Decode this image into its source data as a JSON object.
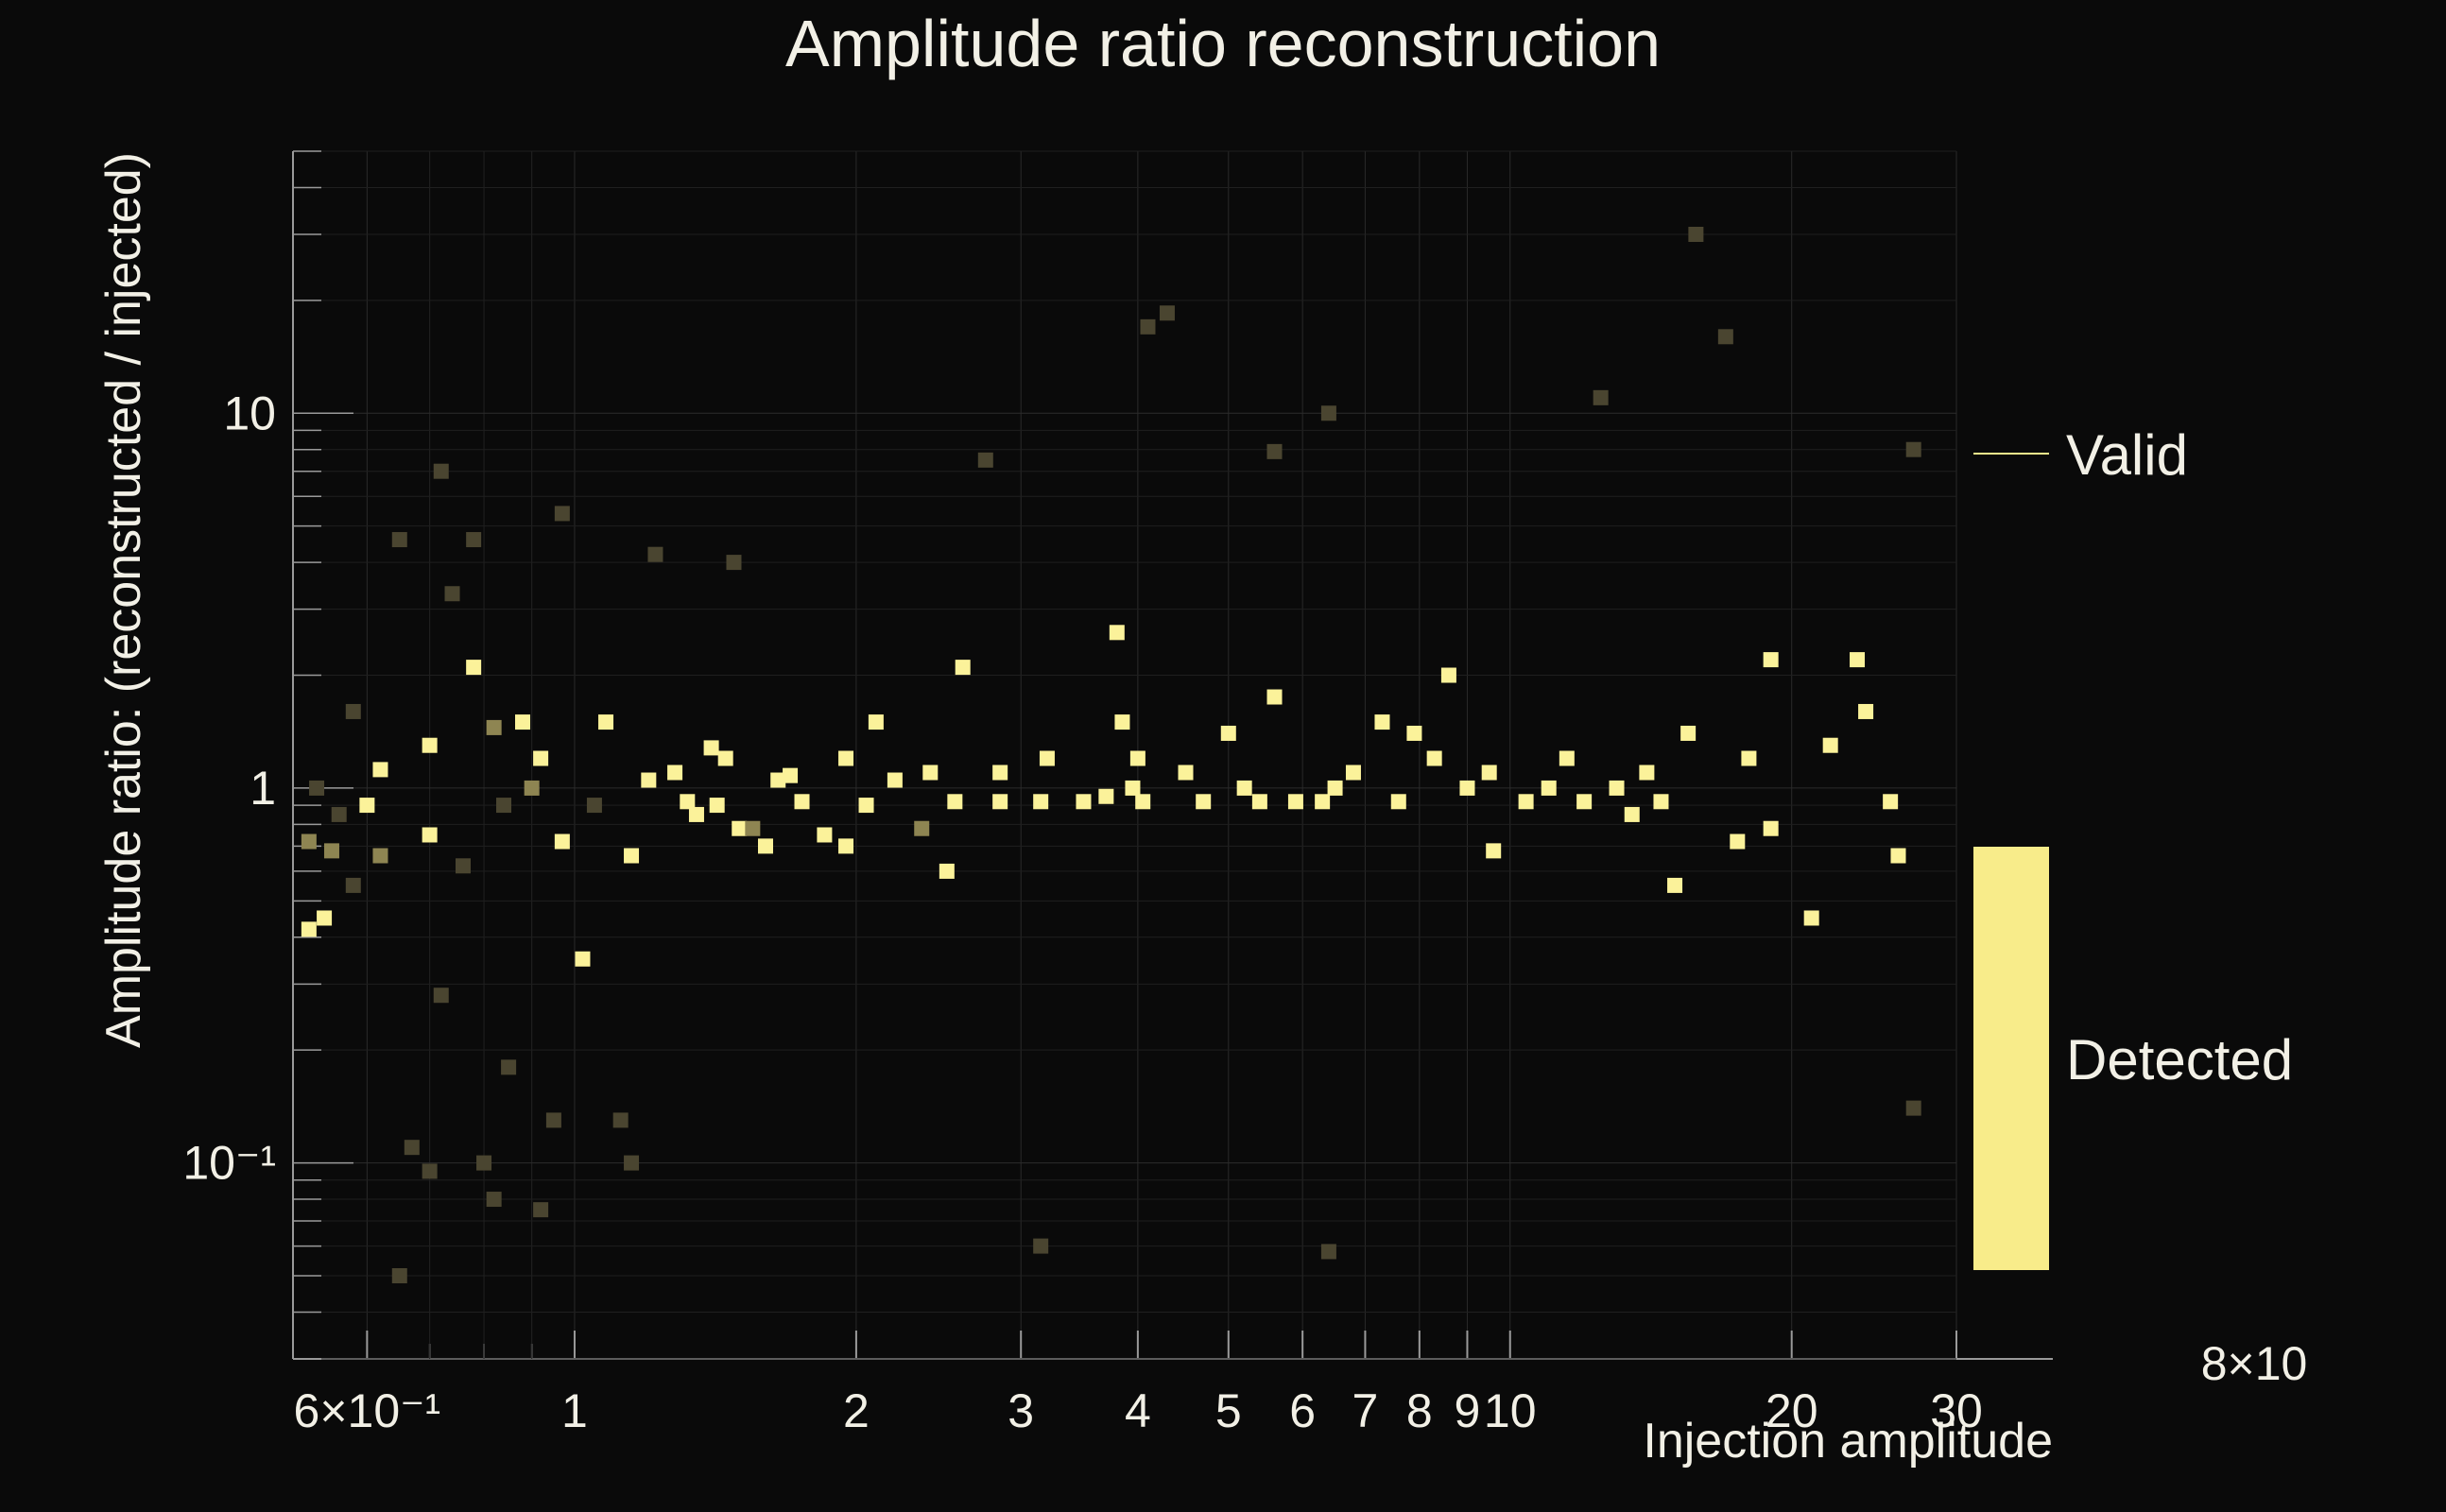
{
  "chart_data": {
    "type": "heatmap",
    "title": "Amplitude ratio  reconstruction",
    "xlabel": "Injection amplitude",
    "ylabel": "Amplitude ratio: (reconstructed / injected)",
    "x_scale": "log",
    "y_scale": "log",
    "xlim": [
      0.5,
      30
    ],
    "ylim": [
      0.03,
      50
    ],
    "x_tick_labels": [
      "6×10⁻¹",
      "1",
      "2",
      "3",
      "4",
      "5",
      "6",
      "7",
      "8",
      "9",
      "10",
      "20",
      "30"
    ],
    "x_tick_values": [
      0.6,
      1,
      2,
      3,
      4,
      5,
      6,
      7,
      8,
      9,
      10,
      20,
      30
    ],
    "y_tick_labels": [
      "10⁻¹",
      "1",
      "10"
    ],
    "y_tick_values": [
      0.1,
      1,
      10
    ],
    "overflow_label": "8×10",
    "grid": true,
    "legend": {
      "placement": "right",
      "entries": [
        {
          "name": "Valid",
          "style": "line",
          "color": "#f5eb8c"
        },
        {
          "name": "Detected",
          "style": "fill",
          "color": "#f8ec8a"
        }
      ]
    },
    "colors": {
      "background": "#0a0a0a",
      "bright": "#fbf29a",
      "dim": "#4a4530",
      "text": "#f2f0e6"
    },
    "points": [
      {
        "x": 0.52,
        "y": 0.72,
        "w": 2
      },
      {
        "x": 0.52,
        "y": 0.42,
        "w": 3
      },
      {
        "x": 0.54,
        "y": 0.45,
        "w": 3
      },
      {
        "x": 0.55,
        "y": 0.68,
        "w": 2
      },
      {
        "x": 0.53,
        "y": 1.0,
        "w": 1
      },
      {
        "x": 0.56,
        "y": 0.85,
        "w": 1
      },
      {
        "x": 0.6,
        "y": 0.9,
        "w": 3
      },
      {
        "x": 0.62,
        "y": 1.12,
        "w": 3
      },
      {
        "x": 0.62,
        "y": 0.66,
        "w": 2
      },
      {
        "x": 0.58,
        "y": 1.6,
        "w": 1
      },
      {
        "x": 0.58,
        "y": 0.55,
        "w": 1
      },
      {
        "x": 0.65,
        "y": 4.6,
        "w": 1
      },
      {
        "x": 0.67,
        "y": 0.11,
        "w": 1
      },
      {
        "x": 0.65,
        "y": 0.05,
        "w": 1
      },
      {
        "x": 0.7,
        "y": 1.3,
        "w": 3
      },
      {
        "x": 0.7,
        "y": 0.75,
        "w": 3
      },
      {
        "x": 0.72,
        "y": 7.0,
        "w": 1
      },
      {
        "x": 0.74,
        "y": 3.3,
        "w": 1
      },
      {
        "x": 0.72,
        "y": 0.28,
        "w": 1
      },
      {
        "x": 0.7,
        "y": 0.095,
        "w": 1
      },
      {
        "x": 0.76,
        "y": 0.62,
        "w": 1
      },
      {
        "x": 0.78,
        "y": 2.1,
        "w": 3
      },
      {
        "x": 0.8,
        "y": 0.1,
        "w": 1
      },
      {
        "x": 0.78,
        "y": 4.6,
        "w": 1
      },
      {
        "x": 0.82,
        "y": 1.45,
        "w": 2
      },
      {
        "x": 0.84,
        "y": 0.9,
        "w": 1
      },
      {
        "x": 0.82,
        "y": 0.08,
        "w": 1
      },
      {
        "x": 0.85,
        "y": 0.18,
        "w": 1
      },
      {
        "x": 0.88,
        "y": 1.5,
        "w": 3
      },
      {
        "x": 0.9,
        "y": 1.0,
        "w": 2
      },
      {
        "x": 0.92,
        "y": 1.2,
        "w": 3
      },
      {
        "x": 0.92,
        "y": 0.075,
        "w": 1
      },
      {
        "x": 0.95,
        "y": 0.13,
        "w": 1
      },
      {
        "x": 0.97,
        "y": 0.72,
        "w": 3
      },
      {
        "x": 0.97,
        "y": 5.4,
        "w": 1
      },
      {
        "x": 1.02,
        "y": 0.35,
        "w": 3
      },
      {
        "x": 1.08,
        "y": 1.5,
        "w": 3
      },
      {
        "x": 1.05,
        "y": 0.9,
        "w": 1
      },
      {
        "x": 1.12,
        "y": 0.13,
        "w": 1
      },
      {
        "x": 1.15,
        "y": 0.66,
        "w": 3
      },
      {
        "x": 1.2,
        "y": 1.05,
        "w": 3
      },
      {
        "x": 1.15,
        "y": 0.1,
        "w": 1
      },
      {
        "x": 1.22,
        "y": 4.2,
        "w": 1
      },
      {
        "x": 1.28,
        "y": 1.1,
        "w": 3
      },
      {
        "x": 1.32,
        "y": 0.92,
        "w": 3
      },
      {
        "x": 1.35,
        "y": 0.85,
        "w": 3
      },
      {
        "x": 1.4,
        "y": 1.28,
        "w": 3
      },
      {
        "x": 1.42,
        "y": 0.9,
        "w": 3
      },
      {
        "x": 1.45,
        "y": 1.2,
        "w": 3
      },
      {
        "x": 1.5,
        "y": 0.78,
        "w": 3
      },
      {
        "x": 1.48,
        "y": 4.0,
        "w": 1
      },
      {
        "x": 1.55,
        "y": 0.78,
        "w": 2
      },
      {
        "x": 1.6,
        "y": 0.7,
        "w": 3
      },
      {
        "x": 1.65,
        "y": 1.05,
        "w": 3
      },
      {
        "x": 1.7,
        "y": 1.08,
        "w": 3
      },
      {
        "x": 1.75,
        "y": 0.92,
        "w": 3
      },
      {
        "x": 1.85,
        "y": 0.75,
        "w": 3
      },
      {
        "x": 1.95,
        "y": 0.7,
        "w": 3
      },
      {
        "x": 1.95,
        "y": 1.2,
        "w": 3
      },
      {
        "x": 2.05,
        "y": 0.9,
        "w": 3
      },
      {
        "x": 2.1,
        "y": 1.5,
        "w": 3
      },
      {
        "x": 2.2,
        "y": 1.05,
        "w": 3
      },
      {
        "x": 2.35,
        "y": 0.78,
        "w": 2
      },
      {
        "x": 2.4,
        "y": 1.1,
        "w": 3
      },
      {
        "x": 2.5,
        "y": 0.6,
        "w": 3
      },
      {
        "x": 2.55,
        "y": 0.92,
        "w": 3
      },
      {
        "x": 2.6,
        "y": 2.1,
        "w": 3
      },
      {
        "x": 2.75,
        "y": 7.5,
        "w": 1
      },
      {
        "x": 2.85,
        "y": 0.92,
        "w": 3
      },
      {
        "x": 2.85,
        "y": 1.1,
        "w": 3
      },
      {
        "x": 3.15,
        "y": 0.92,
        "w": 3
      },
      {
        "x": 3.2,
        "y": 1.2,
        "w": 3
      },
      {
        "x": 3.15,
        "y": 0.06,
        "w": 1
      },
      {
        "x": 3.5,
        "y": 0.92,
        "w": 3
      },
      {
        "x": 3.7,
        "y": 0.95,
        "w": 3
      },
      {
        "x": 3.8,
        "y": 2.6,
        "w": 3
      },
      {
        "x": 3.85,
        "y": 1.5,
        "w": 3
      },
      {
        "x": 3.95,
        "y": 1.0,
        "w": 3
      },
      {
        "x": 4.0,
        "y": 1.2,
        "w": 3
      },
      {
        "x": 4.05,
        "y": 0.92,
        "w": 3
      },
      {
        "x": 4.1,
        "y": 17.0,
        "w": 1
      },
      {
        "x": 4.3,
        "y": 18.5,
        "w": 1
      },
      {
        "x": 4.5,
        "y": 1.1,
        "w": 3
      },
      {
        "x": 4.7,
        "y": 0.92,
        "w": 3
      },
      {
        "x": 5.0,
        "y": 1.4,
        "w": 3
      },
      {
        "x": 5.2,
        "y": 1.0,
        "w": 3
      },
      {
        "x": 5.4,
        "y": 0.92,
        "w": 3
      },
      {
        "x": 5.6,
        "y": 1.75,
        "w": 3
      },
      {
        "x": 5.6,
        "y": 7.9,
        "w": 1
      },
      {
        "x": 5.9,
        "y": 0.92,
        "w": 3
      },
      {
        "x": 6.3,
        "y": 0.92,
        "w": 3
      },
      {
        "x": 6.5,
        "y": 1.0,
        "w": 3
      },
      {
        "x": 6.4,
        "y": 10.0,
        "w": 1
      },
      {
        "x": 6.4,
        "y": 0.058,
        "w": 1
      },
      {
        "x": 6.8,
        "y": 1.1,
        "w": 3
      },
      {
        "x": 7.3,
        "y": 1.5,
        "w": 3
      },
      {
        "x": 7.6,
        "y": 0.92,
        "w": 3
      },
      {
        "x": 7.9,
        "y": 1.4,
        "w": 3
      },
      {
        "x": 8.3,
        "y": 1.2,
        "w": 3
      },
      {
        "x": 8.6,
        "y": 2.0,
        "w": 3
      },
      {
        "x": 9.0,
        "y": 1.0,
        "w": 3
      },
      {
        "x": 9.5,
        "y": 1.1,
        "w": 3
      },
      {
        "x": 9.6,
        "y": 0.68,
        "w": 3
      },
      {
        "x": 10.4,
        "y": 0.92,
        "w": 3
      },
      {
        "x": 11.0,
        "y": 1.0,
        "w": 3
      },
      {
        "x": 11.5,
        "y": 1.2,
        "w": 3
      },
      {
        "x": 12.0,
        "y": 0.92,
        "w": 3
      },
      {
        "x": 12.5,
        "y": 11.0,
        "w": 1
      },
      {
        "x": 13.0,
        "y": 1.0,
        "w": 3
      },
      {
        "x": 13.5,
        "y": 0.85,
        "w": 3
      },
      {
        "x": 14.0,
        "y": 1.1,
        "w": 3
      },
      {
        "x": 14.5,
        "y": 0.92,
        "w": 3
      },
      {
        "x": 15.0,
        "y": 0.55,
        "w": 3
      },
      {
        "x": 15.5,
        "y": 1.4,
        "w": 3
      },
      {
        "x": 15.8,
        "y": 30.0,
        "w": 1
      },
      {
        "x": 17.0,
        "y": 16.0,
        "w": 1
      },
      {
        "x": 17.5,
        "y": 0.72,
        "w": 3
      },
      {
        "x": 18.0,
        "y": 1.2,
        "w": 3
      },
      {
        "x": 19.0,
        "y": 2.2,
        "w": 3
      },
      {
        "x": 19.0,
        "y": 0.78,
        "w": 3
      },
      {
        "x": 21.0,
        "y": 0.45,
        "w": 3
      },
      {
        "x": 22.0,
        "y": 1.3,
        "w": 3
      },
      {
        "x": 23.5,
        "y": 2.2,
        "w": 3
      },
      {
        "x": 24.0,
        "y": 1.6,
        "w": 3
      },
      {
        "x": 25.5,
        "y": 0.92,
        "w": 3
      },
      {
        "x": 26.0,
        "y": 0.66,
        "w": 3
      },
      {
        "x": 27.0,
        "y": 8.0,
        "w": 1
      },
      {
        "x": 27.0,
        "y": 0.14,
        "w": 1
      }
    ]
  }
}
